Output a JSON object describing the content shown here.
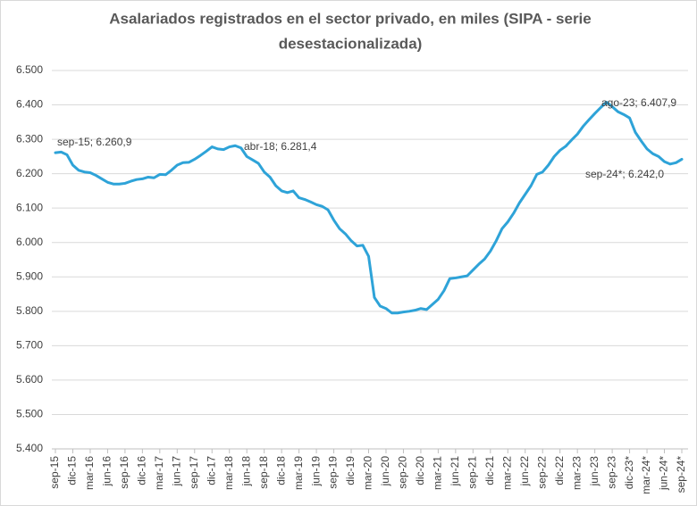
{
  "chart_data": {
    "type": "line",
    "title": "Asalariados registrados en el sector privado, en miles (SIPA - serie",
    "subtitle": "desestacionalizada)",
    "categories": [
      "sep-15",
      null,
      null,
      "dic-15",
      null,
      null,
      "mar-16",
      null,
      null,
      "jun-16",
      null,
      null,
      "sep-16",
      null,
      null,
      "dic-16",
      null,
      null,
      "mar-17",
      null,
      null,
      "jun-17",
      null,
      null,
      "sep-17",
      null,
      null,
      "dic-17",
      null,
      null,
      "mar-18",
      null,
      null,
      "jun-18",
      null,
      null,
      "sep-18",
      null,
      null,
      "dic-18",
      null,
      null,
      "mar-19",
      null,
      null,
      "jun-19",
      null,
      null,
      "sep-19",
      null,
      null,
      "dic-19",
      null,
      null,
      "mar-20",
      null,
      null,
      "jun-20",
      null,
      null,
      "sep-20",
      null,
      null,
      "dic-20",
      null,
      null,
      "mar-21",
      null,
      null,
      "jun-21",
      null,
      null,
      "sep-21",
      null,
      null,
      "dic-21",
      null,
      null,
      "mar-22",
      null,
      null,
      "jun-22",
      null,
      null,
      "sep-22",
      null,
      null,
      "dic-22",
      null,
      null,
      "mar-23",
      null,
      null,
      "jun-23",
      null,
      null,
      "sep-23",
      null,
      null,
      "dic-23*",
      null,
      null,
      "mar-24*",
      null,
      null,
      "jun-24*",
      null,
      null,
      "sep-24*"
    ],
    "series": [
      {
        "name": "Asalariados registrados",
        "color": "#2ea3d8",
        "values": [
          6260.9,
          6263,
          6255,
          6225,
          6210,
          6205,
          6203,
          6195,
          6185,
          6175,
          6170,
          6170,
          6172,
          6178,
          6183,
          6185,
          6190,
          6188,
          6198,
          6197,
          6210,
          6225,
          6232,
          6233,
          6242,
          6253,
          6265,
          6278,
          6272,
          6270,
          6278,
          6281.4,
          6275,
          6250,
          6240,
          6230,
          6205,
          6190,
          6165,
          6150,
          6145,
          6150,
          6130,
          6125,
          6118,
          6110,
          6105,
          6095,
          6065,
          6040,
          6025,
          6005,
          5990,
          5992,
          5960,
          5840,
          5815,
          5808,
          5795,
          5795,
          5798,
          5800,
          5803,
          5808,
          5805,
          5820,
          5835,
          5860,
          5895,
          5897,
          5900,
          5903,
          5920,
          5937,
          5952,
          5975,
          6005,
          6040,
          6060,
          6085,
          6115,
          6140,
          6165,
          6198,
          6205,
          6225,
          6250,
          6268,
          6280,
          6298,
          6315,
          6338,
          6357,
          6375,
          6392,
          6407.9,
          6395,
          6380,
          6372,
          6362,
          6320,
          6295,
          6272,
          6258,
          6250,
          6235,
          6228,
          6232,
          6242.0
        ]
      }
    ],
    "annotations": [
      "sep-15; 6.260,9",
      "abr-18; 6.281,4",
      "ago-23; 6.407,9",
      "sep-24*; 6.242,0"
    ],
    "ylim": [
      5400,
      6500
    ],
    "yticks": [
      {
        "value": 5400,
        "label": "5.400"
      },
      {
        "value": 5500,
        "label": "5.500"
      },
      {
        "value": 5600,
        "label": "5.600"
      },
      {
        "value": 5700,
        "label": "5.700"
      },
      {
        "value": 5800,
        "label": "5.800"
      },
      {
        "value": 5900,
        "label": "5.900"
      },
      {
        "value": 6000,
        "label": "6.000"
      },
      {
        "value": 6100,
        "label": "6.100"
      },
      {
        "value": 6200,
        "label": "6.200"
      },
      {
        "value": 6300,
        "label": "6.300"
      },
      {
        "value": 6400,
        "label": "6.400"
      },
      {
        "value": 6500,
        "label": "6.500"
      }
    ],
    "grid": true
  }
}
